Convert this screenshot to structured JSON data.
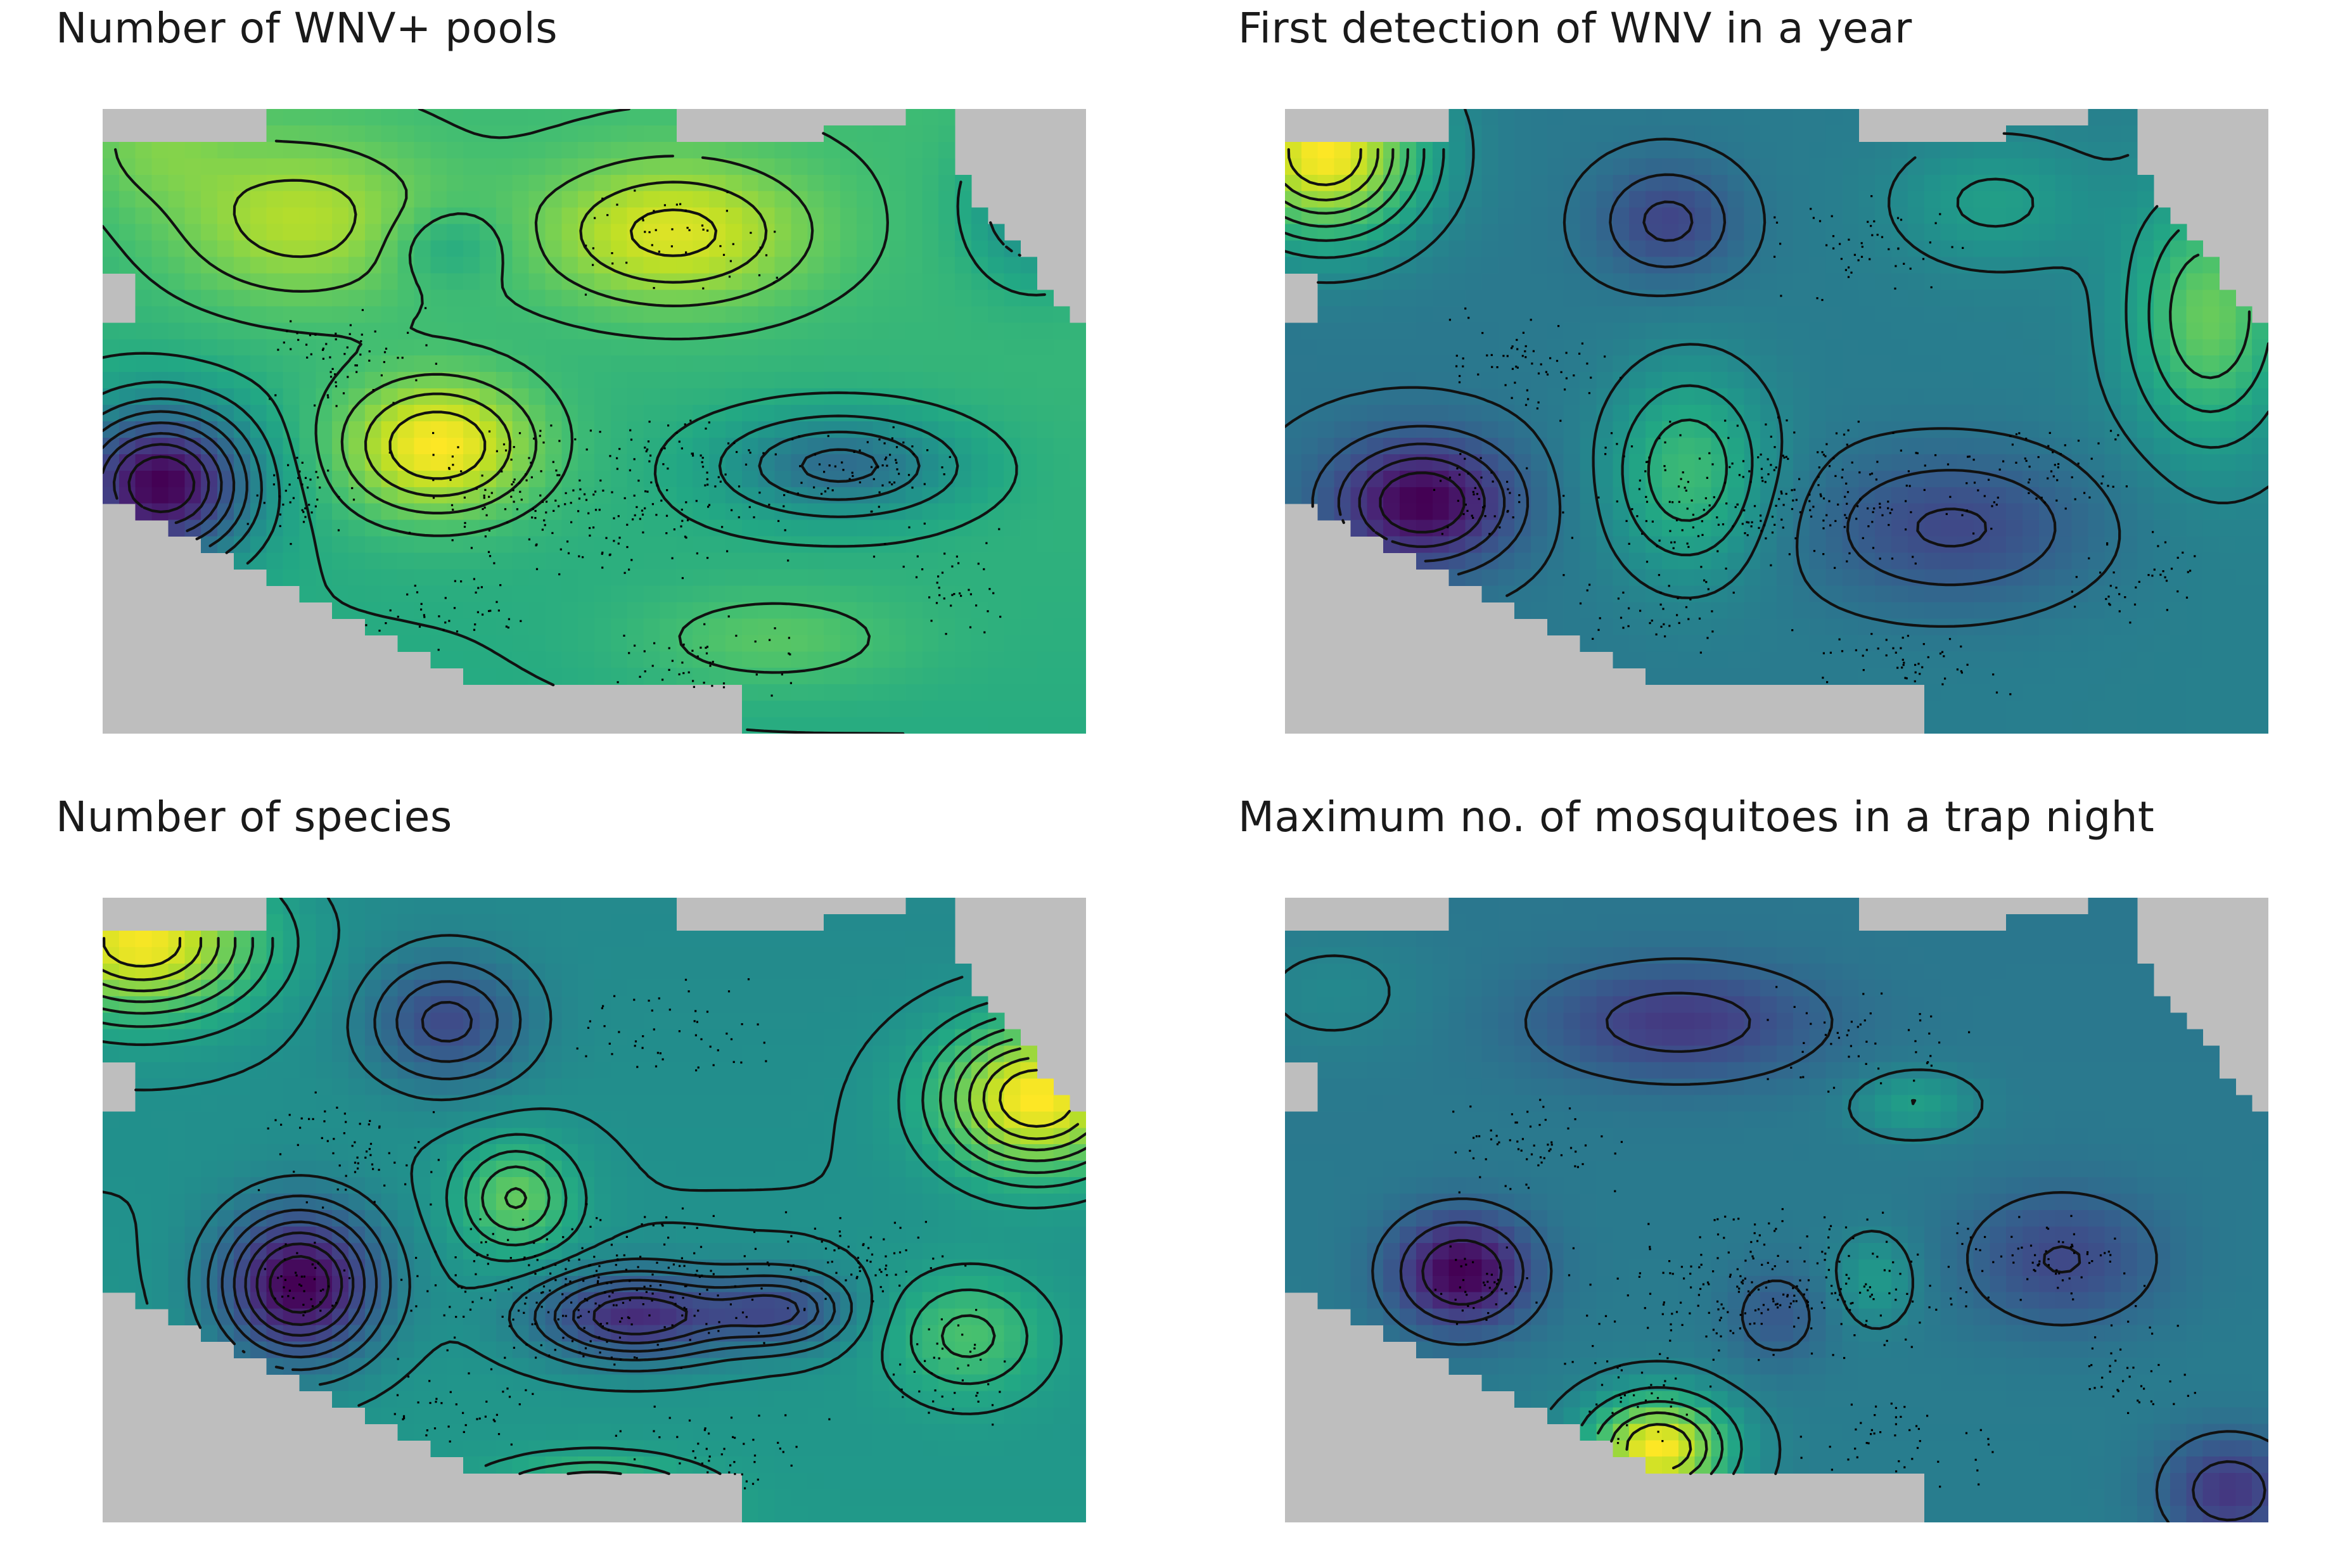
{
  "figure": {
    "panels": [
      {
        "id": "wnv-pools",
        "title": "Number of WNV+ pools",
        "palette": "viridis",
        "colors": {
          "low": "#440154",
          "mid": "#21918c",
          "high": "#fde725"
        },
        "field": {
          "base": 0.66,
          "tilt": [
            0.02,
            -0.06
          ],
          "bumps": [
            [
              0.06,
              0.6,
              -0.55,
              0.09,
              0.12
            ],
            [
              0.34,
              0.54,
              0.32,
              0.1,
              0.11
            ],
            [
              0.2,
              0.18,
              0.2,
              0.14,
              0.14
            ],
            [
              0.58,
              0.2,
              0.25,
              0.14,
              0.12
            ],
            [
              0.35,
              0.22,
              -0.1,
              0.06,
              0.06
            ],
            [
              0.75,
              0.57,
              -0.25,
              0.12,
              0.08
            ],
            [
              0.68,
              0.85,
              0.1,
              0.14,
              0.08
            ],
            [
              0.95,
              0.15,
              -0.2,
              0.07,
              0.12
            ],
            [
              0.05,
              0.05,
              0.1,
              0.08,
              0.1
            ]
          ]
        },
        "levels": 13
      },
      {
        "id": "first-detection",
        "title": "First detection of WNV in a year",
        "palette": "viridis",
        "colors": {
          "low": "#440154",
          "mid": "#21918c",
          "high": "#fde725"
        },
        "field": {
          "base": 0.48,
          "tilt": [
            0.03,
            0.0
          ],
          "bumps": [
            [
              0.04,
              0.07,
              0.45,
              0.1,
              0.14
            ],
            [
              0.14,
              0.63,
              -0.3,
              0.09,
              0.1
            ],
            [
              0.39,
              0.18,
              -0.15,
              0.07,
              0.09
            ],
            [
              0.41,
              0.58,
              0.2,
              0.08,
              0.16
            ],
            [
              0.68,
              0.67,
              -0.15,
              0.14,
              0.12
            ],
            [
              0.94,
              0.33,
              0.25,
              0.08,
              0.2
            ],
            [
              0.72,
              0.15,
              0.1,
              0.1,
              0.1
            ]
          ]
        },
        "levels": 13
      },
      {
        "id": "num-species",
        "title": "Number of species",
        "palette": "viridis",
        "colors": {
          "low": "#440154",
          "mid": "#21918c",
          "high": "#fde725"
        },
        "field": {
          "base": 0.55,
          "tilt": [
            0.0,
            0.05
          ],
          "bumps": [
            [
              0.04,
              0.07,
              0.4,
              0.12,
              0.12
            ],
            [
              0.2,
              0.62,
              -0.4,
              0.08,
              0.12
            ],
            [
              0.35,
              0.2,
              -0.2,
              0.08,
              0.1
            ],
            [
              0.42,
              0.48,
              0.2,
              0.06,
              0.09
            ],
            [
              0.54,
              0.67,
              -0.3,
              0.1,
              0.07
            ],
            [
              0.69,
              0.66,
              -0.2,
              0.07,
              0.06
            ],
            [
              0.95,
              0.32,
              0.4,
              0.1,
              0.12
            ],
            [
              0.5,
              0.97,
              0.25,
              0.1,
              0.06
            ],
            [
              0.88,
              0.7,
              0.15,
              0.08,
              0.1
            ]
          ]
        },
        "levels": 16
      },
      {
        "id": "max-mosquitoes",
        "title": "Maximum no. of mosquitoes in a trap night",
        "palette": "viridis",
        "colors": {
          "low": "#440154",
          "mid": "#21918c",
          "high": "#fde725"
        },
        "field": {
          "base": 0.52,
          "tilt": [
            0.0,
            0.02
          ],
          "bumps": [
            [
              0.18,
              0.6,
              -0.32,
              0.07,
              0.09
            ],
            [
              0.4,
              0.2,
              -0.18,
              0.14,
              0.09
            ],
            [
              0.38,
              0.88,
              0.45,
              0.07,
              0.08
            ],
            [
              0.64,
              0.33,
              0.12,
              0.06,
              0.05
            ],
            [
              0.6,
              0.61,
              0.1,
              0.04,
              0.07
            ],
            [
              0.79,
              0.58,
              -0.15,
              0.1,
              0.11
            ],
            [
              0.5,
              0.67,
              -0.1,
              0.05,
              0.08
            ],
            [
              0.96,
              0.95,
              -0.2,
              0.07,
              0.09
            ],
            [
              0.05,
              0.15,
              0.05,
              0.1,
              0.1
            ]
          ]
        },
        "levels": 9
      }
    ],
    "mask_color": "#bebebe",
    "contour_color": "#111111",
    "trap_point_color": "#000000"
  }
}
